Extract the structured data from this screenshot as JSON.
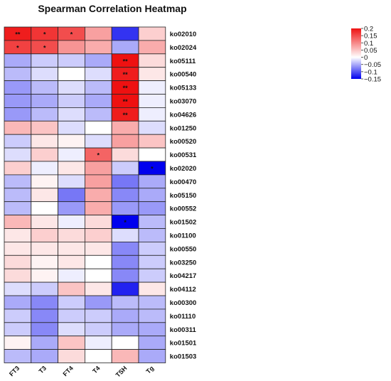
{
  "chart_data": {
    "type": "heatmap",
    "title": "Spearman Correlation Heatmap",
    "columns": [
      "FT3",
      "T3",
      "FT4",
      "T4",
      "TSH",
      "Tg"
    ],
    "rows": [
      "ko02010",
      "ko02024",
      "ko05111",
      "ko00540",
      "ko05133",
      "ko03070",
      "ko04626",
      "ko01250",
      "ko00520",
      "ko00531",
      "ko02020",
      "ko00470",
      "ko05150",
      "ko00552",
      "ko01502",
      "ko01100",
      "ko00550",
      "ko03250",
      "ko04217",
      "ko04112",
      "ko00300",
      "ko01110",
      "ko00311",
      "ko01501",
      "ko01503"
    ],
    "values": [
      [
        0.19,
        0.17,
        0.15,
        0.08,
        -0.12,
        0.04
      ],
      [
        0.16,
        0.15,
        0.09,
        0.07,
        -0.05,
        0.07
      ],
      [
        -0.05,
        -0.03,
        -0.03,
        -0.05,
        0.2,
        0.03
      ],
      [
        -0.04,
        -0.02,
        0.0,
        -0.02,
        0.19,
        0.02
      ],
      [
        -0.06,
        -0.04,
        -0.02,
        -0.04,
        0.2,
        -0.01
      ],
      [
        -0.06,
        -0.05,
        -0.03,
        -0.05,
        0.2,
        -0.01
      ],
      [
        -0.06,
        -0.04,
        -0.02,
        -0.04,
        0.19,
        -0.01
      ],
      [
        0.06,
        0.05,
        -0.02,
        0.0,
        0.07,
        -0.02
      ],
      [
        -0.03,
        0.02,
        0.01,
        -0.02,
        0.08,
        0.05
      ],
      [
        -0.02,
        0.04,
        -0.01,
        0.13,
        0.03,
        0.0
      ],
      [
        0.04,
        -0.01,
        0.02,
        0.08,
        -0.03,
        -0.15
      ],
      [
        -0.04,
        0.01,
        -0.02,
        0.08,
        -0.08,
        -0.05
      ],
      [
        -0.04,
        0.02,
        -0.08,
        0.07,
        -0.07,
        -0.05
      ],
      [
        -0.04,
        0.0,
        -0.06,
        0.07,
        -0.06,
        -0.06
      ],
      [
        0.06,
        0.02,
        -0.01,
        0.03,
        -0.15,
        -0.04
      ],
      [
        0.02,
        0.04,
        0.03,
        0.04,
        -0.02,
        -0.04
      ],
      [
        0.02,
        0.02,
        0.02,
        0.02,
        -0.07,
        -0.03
      ],
      [
        0.03,
        0.01,
        0.02,
        0.0,
        -0.07,
        -0.03
      ],
      [
        0.03,
        0.01,
        -0.01,
        0.0,
        -0.07,
        -0.03
      ],
      [
        -0.02,
        -0.03,
        0.05,
        0.02,
        -0.13,
        0.02
      ],
      [
        -0.05,
        -0.07,
        -0.03,
        -0.06,
        -0.04,
        -0.04
      ],
      [
        -0.03,
        -0.07,
        -0.03,
        -0.03,
        -0.05,
        -0.04
      ],
      [
        -0.03,
        -0.07,
        -0.02,
        -0.03,
        -0.05,
        -0.05
      ],
      [
        0.01,
        -0.05,
        0.05,
        -0.01,
        0.0,
        -0.05
      ],
      [
        -0.04,
        -0.05,
        0.03,
        0.0,
        0.06,
        -0.05
      ]
    ],
    "stars": [
      [
        "**",
        "*",
        "*",
        "",
        "",
        ""
      ],
      [
        "*",
        "*",
        "",
        "",
        "",
        ""
      ],
      [
        "",
        "",
        "",
        "",
        "**",
        ""
      ],
      [
        "",
        "",
        "",
        "",
        "**",
        ""
      ],
      [
        "",
        "",
        "",
        "",
        "**",
        ""
      ],
      [
        "",
        "",
        "",
        "",
        "**",
        ""
      ],
      [
        "",
        "",
        "",
        "",
        "**",
        ""
      ],
      [
        "",
        "",
        "",
        "",
        "",
        ""
      ],
      [
        "",
        "",
        "",
        "",
        "",
        ""
      ],
      [
        "",
        "",
        "",
        "*",
        "",
        ""
      ],
      [
        "",
        "",
        "",
        "",
        "",
        "*"
      ],
      [
        "",
        "",
        "",
        "",
        "",
        ""
      ],
      [
        "",
        "",
        "",
        "",
        "",
        ""
      ],
      [
        "",
        "",
        "",
        "",
        "",
        ""
      ],
      [
        "",
        "",
        "",
        "",
        "*",
        ""
      ],
      [
        "",
        "",
        "",
        "",
        "",
        ""
      ],
      [
        "",
        "",
        "",
        "",
        "",
        ""
      ],
      [
        "",
        "",
        "",
        "",
        "",
        ""
      ],
      [
        "",
        "",
        "",
        "",
        "",
        ""
      ],
      [
        "",
        "",
        "",
        "",
        "",
        ""
      ],
      [
        "",
        "",
        "",
        "",
        "",
        ""
      ],
      [
        "",
        "",
        "",
        "",
        "",
        ""
      ],
      [
        "",
        "",
        "",
        "",
        "",
        ""
      ],
      [
        "",
        "",
        "",
        "",
        "",
        ""
      ],
      [
        "",
        "",
        "",
        "",
        "",
        ""
      ]
    ],
    "color_scale": {
      "min": -0.15,
      "mid": 0,
      "max": 0.2,
      "low_color": "#0000ee",
      "mid_color": "#ffffff",
      "high_color": "#ee1111"
    },
    "legend": {
      "placement": "top-right",
      "ticks": [
        0.2,
        0.15,
        0.1,
        0.05,
        0,
        -0.05,
        -0.1,
        -0.15
      ],
      "tick_labels": [
        "0.2",
        "0.15",
        "0.1",
        "0.05",
        "0",
        "−0.05",
        "−0.1",
        "−0.15"
      ]
    },
    "grid": true
  }
}
